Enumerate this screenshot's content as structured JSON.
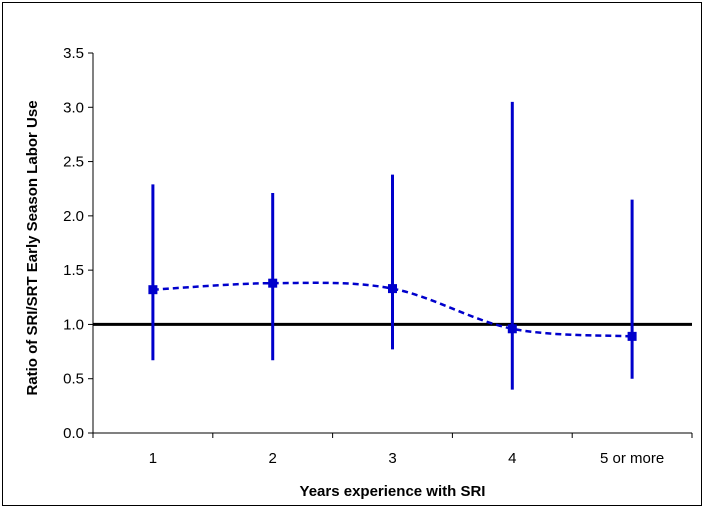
{
  "chart_data": {
    "type": "scatter",
    "title": "",
    "xlabel": "Years experience with SRI",
    "ylabel": "Ratio of SRI/SRT Early Season Labor Use",
    "categories": [
      "1",
      "2",
      "3",
      "4",
      "5 or more"
    ],
    "ylim": [
      0,
      3.5
    ],
    "yticks": [
      0.0,
      0.5,
      1.0,
      1.5,
      2.0,
      2.5,
      3.0,
      3.5
    ],
    "ytick_labels": [
      "0.0",
      "0.5",
      "1.0",
      "1.5",
      "2.0",
      "2.5",
      "3.0",
      "3.5"
    ],
    "series": [
      {
        "values": [
          1.32,
          1.38,
          1.33,
          0.96,
          0.89
        ],
        "error_low": [
          0.67,
          0.67,
          0.77,
          0.4,
          0.5
        ],
        "error_high": [
          2.29,
          2.21,
          2.38,
          3.05,
          2.15
        ],
        "color": "#0000CC",
        "line_style": "dashed-smooth",
        "marker": "square"
      }
    ],
    "reference_line": {
      "y": 1.0,
      "color": "#000000"
    },
    "grid": false,
    "legend": "none"
  }
}
